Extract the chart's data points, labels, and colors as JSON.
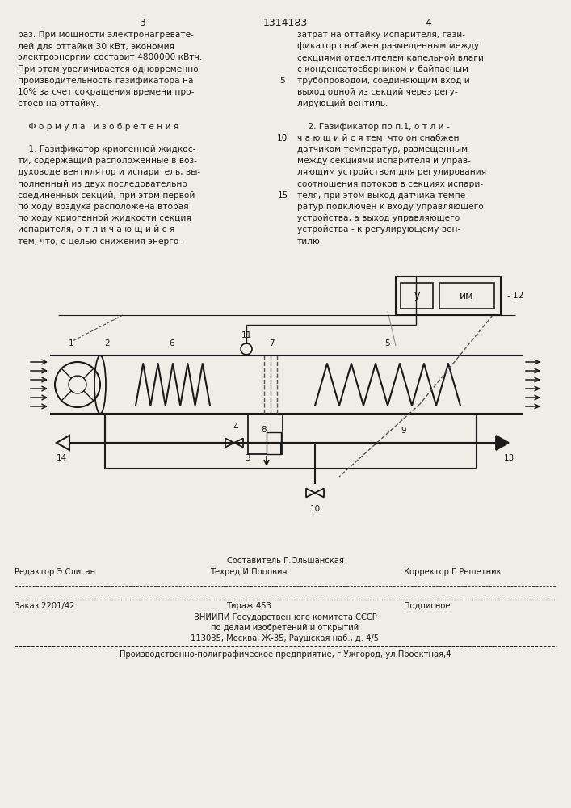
{
  "bg_color": "#f0ede8",
  "page_width": 7.07,
  "page_height": 10.0,
  "top_text_left": [
    "раз. При мощности электронагревате-",
    "лей для оттайки 30 кВт, экономия",
    "электроэнергии составит 4800000 кВтч.",
    "При этом увеличивается одновременно",
    "производительность газификатора на",
    "10% за счет сокращения времени про-",
    "стоев на оттайку.",
    "",
    "    Ф о р м у л а   и з о б р е т е н и я",
    "",
    "    1. Газификатор криогенной жидкос-",
    "ти, содержащий расположенные в воз-",
    "духоводе вентилятор и испаритель, вы-",
    "полненный из двух последовательно",
    "соединенных секций, при этом первой",
    "по ходу воздуха расположена вторая",
    "по ходу криогенной жидкости секция",
    "испарителя, о т л и ч а ю щ и й с я",
    "тем, что, с целью снижения энерго-"
  ],
  "top_text_right": [
    "затрат на оттайку испарителя, гази-",
    "фикатор снабжен размещенным между",
    "секциями отделителем капельной влаги",
    "с конденсатосборником и байпасным",
    "трубопроводом, соединяющим вход и",
    "выход одной из секций через регу-",
    "лирующий вентиль.",
    "",
    "    2. Газификатор по п.1, о т л и -",
    "ч а ю щ и й с я тем, что он снабжен",
    "датчиком температур, размещенным",
    "между секциями испарителя и управ-",
    "ляющим устройством для регулирования",
    "соотношения потоков в секциях испари-",
    "теля, при этом выход датчика темпе-",
    "ратур подключен к входу управляющего",
    "устройства, а выход управляющего",
    "устройства - к регулирующему вен-",
    "тилю."
  ],
  "header_num": "1314183",
  "header_page_left": "3",
  "header_page_right": "4",
  "footer_line1_left": "Редактор Э.Слиган",
  "footer_line1_mid": "Составитель Г.Ольшанская",
  "footer_line2_mid": "Техред И.Попович",
  "footer_line2_right": "Корректор Г.Решетник",
  "footer_line3_left": "Заказ 2201/42",
  "footer_line3_mid": "Тираж 453",
  "footer_line3_right": "Подписное",
  "footer_line4": "ВНИИПИ Государственного комитета СССР",
  "footer_line5": "по делам изобретений и открытий",
  "footer_line6": "113035, Москва, Ж-35, Раушская наб., д. 4/5",
  "footer_line7": "Производственно-полиграфическое предприятие, г.Ужгород, ул.Проектная,4"
}
